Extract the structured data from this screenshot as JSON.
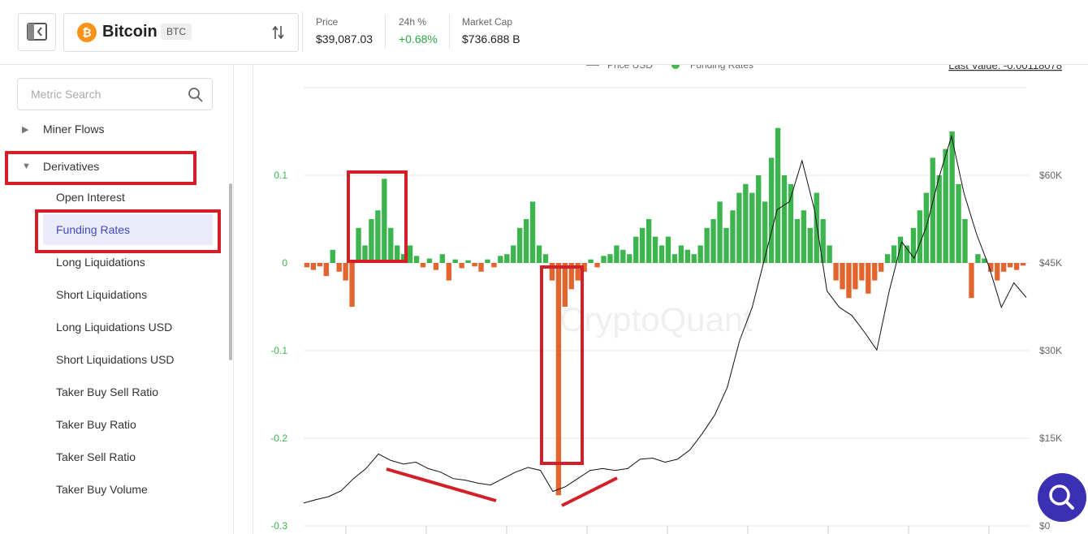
{
  "header": {
    "coin": "Bitcoin",
    "symbol": "BTC",
    "stats": [
      {
        "label": "Price",
        "value": "$39,087.03"
      },
      {
        "label": "24h %",
        "value": "+0.68%"
      },
      {
        "label": "Market Cap",
        "value": "$736.688 B"
      }
    ]
  },
  "sidebar": {
    "search_placeholder": "Metric Search",
    "groups": [
      {
        "label": "Miner Flows",
        "expanded": false
      },
      {
        "label": "Derivatives",
        "expanded": true,
        "active_index": 1,
        "items": [
          "Open Interest",
          "Funding Rates",
          "Long Liquidations",
          "Short Liquidations",
          "Long Liquidations USD",
          "Short Liquidations USD",
          "Taker Buy Sell Ratio",
          "Taker Buy Ratio",
          "Taker Sell Ratio",
          "Taker Buy Volume"
        ]
      }
    ]
  },
  "chart_data": {
    "type": "combo",
    "watermark": "CryptoQuant",
    "last_value": "Last Value: -0.00118078",
    "grid": true,
    "ylim": [
      -0.3,
      0.2
    ],
    "yticks": [
      0.1,
      0,
      -0.1,
      -0.2,
      -0.3
    ],
    "y2lim": [
      0,
      75000
    ],
    "y2ticks": [
      {
        "value": 60000,
        "label": "$60K"
      },
      {
        "value": 45000,
        "label": "$45K"
      },
      {
        "value": 30000,
        "label": "$30K"
      },
      {
        "value": 15000,
        "label": "$15K"
      },
      {
        "value": 0,
        "label": "$0"
      }
    ],
    "series": [
      {
        "name": "Price USD",
        "type": "line",
        "axis": "y2",
        "color": "#111111",
        "values": [
          3900,
          4500,
          5000,
          6000,
          8100,
          9800,
          12300,
          11200,
          10600,
          10900,
          9800,
          9200,
          8100,
          7800,
          7300,
          7000,
          8100,
          9200,
          10000,
          9500,
          5900,
          6700,
          8100,
          9500,
          9800,
          9500,
          9800,
          11400,
          11600,
          10900,
          11400,
          13000,
          15800,
          19000,
          23700,
          31800,
          37400,
          45800,
          54100,
          55500,
          62500,
          54100,
          40200,
          37400,
          36000,
          33200,
          30100,
          40200,
          48600,
          45800,
          51300,
          59700,
          66700,
          56900,
          50000,
          44400,
          37400,
          41600,
          39100
        ]
      },
      {
        "name": "Funding Rates",
        "type": "bar",
        "color": "#3cb54f",
        "negative_color": "#e2652f",
        "values": [
          -0.005,
          -0.008,
          -0.004,
          -0.015,
          0.015,
          -0.01,
          -0.02,
          -0.05,
          0.04,
          0.02,
          0.05,
          0.06,
          0.096,
          0.04,
          0.02,
          0.01,
          0.02,
          0.008,
          -0.005,
          0.005,
          -0.008,
          0.01,
          -0.02,
          0.004,
          -0.006,
          0.003,
          -0.004,
          -0.01,
          0.004,
          -0.005,
          0.008,
          0.01,
          0.02,
          0.04,
          0.05,
          0.07,
          0.02,
          0.01,
          -0.02,
          -0.265,
          -0.05,
          -0.03,
          -0.02,
          -0.01,
          0.004,
          -0.005,
          0.008,
          0.01,
          0.02,
          0.015,
          0.01,
          0.03,
          0.04,
          0.05,
          0.03,
          0.02,
          0.03,
          0.01,
          0.02,
          0.015,
          0.01,
          0.02,
          0.04,
          0.05,
          0.07,
          0.04,
          0.06,
          0.08,
          0.09,
          0.08,
          0.1,
          0.07,
          0.12,
          0.154,
          0.1,
          0.09,
          0.05,
          0.06,
          0.04,
          0.08,
          0.05,
          0.02,
          -0.02,
          -0.03,
          -0.04,
          -0.03,
          -0.02,
          -0.035,
          -0.02,
          -0.01,
          0.01,
          0.02,
          0.03,
          0.02,
          0.04,
          0.06,
          0.08,
          0.12,
          0.1,
          0.13,
          0.15,
          0.09,
          0.05,
          -0.04,
          0.01,
          0.005,
          -0.01,
          -0.02,
          -0.01,
          -0.005,
          -0.008,
          -0.003
        ]
      }
    ]
  }
}
